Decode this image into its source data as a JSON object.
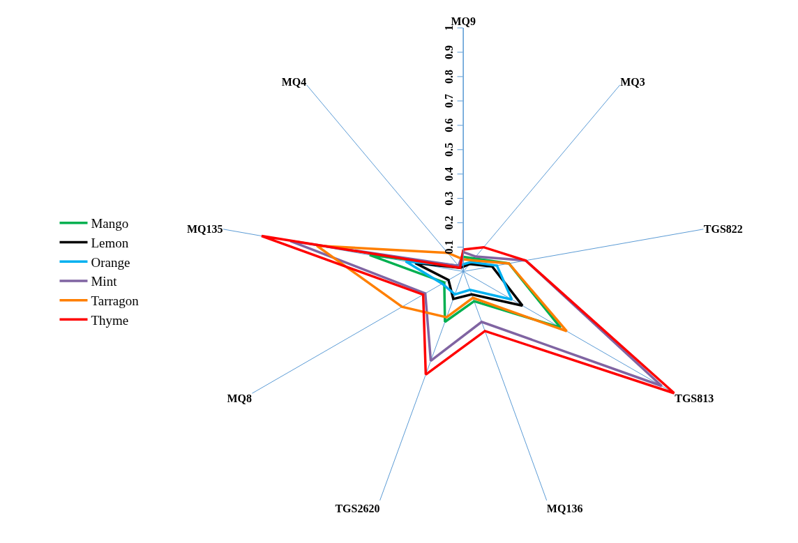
{
  "chart_data": {
    "type": "radar",
    "categories": [
      "MQ9",
      "MQ3",
      "TGS822",
      "TGS813",
      "MQ136",
      "TGS2620",
      "MQ8",
      "MQ135",
      "MQ4"
    ],
    "series": [
      {
        "name": "Mango",
        "color": "#00b050",
        "values": [
          0.06,
          0.07,
          0.19,
          0.46,
          0.13,
          0.22,
          0.09,
          0.39,
          0.03
        ]
      },
      {
        "name": "Lemon",
        "color": "#000000",
        "values": [
          0.02,
          0.04,
          0.12,
          0.28,
          0.1,
          0.12,
          0.07,
          0.2,
          0.02
        ]
      },
      {
        "name": "Orange",
        "color": "#00b0f0",
        "values": [
          0.03,
          0.05,
          0.14,
          0.23,
          0.08,
          0.1,
          0.1,
          0.24,
          0.03
        ]
      },
      {
        "name": "Mint",
        "color": "#8064a2",
        "values": [
          0.08,
          0.08,
          0.26,
          0.94,
          0.22,
          0.39,
          0.18,
          0.72,
          0.03
        ]
      },
      {
        "name": "Tarragon",
        "color": "#ff7f00",
        "values": [
          0.05,
          0.06,
          0.19,
          0.49,
          0.115,
          0.2,
          0.29,
          0.61,
          0.1
        ]
      },
      {
        "name": "Thyme",
        "color": "#ff0000",
        "values": [
          0.09,
          0.13,
          0.26,
          1.0,
          0.26,
          0.45,
          0.19,
          0.84,
          0.02
        ]
      }
    ],
    "ylim": [
      0,
      1
    ],
    "yticks": [
      0.1,
      0.2,
      0.3,
      0.4,
      0.5,
      0.6,
      0.7,
      0.8,
      0.9,
      1
    ],
    "grid": "x",
    "legend": "left",
    "marker": "none",
    "line_style": "solid"
  }
}
